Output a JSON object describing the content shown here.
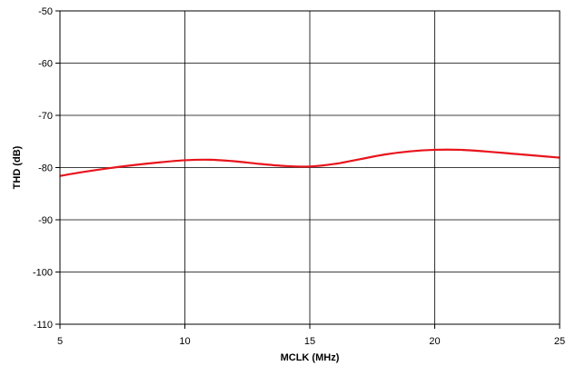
{
  "chart_data": {
    "type": "line",
    "title": "",
    "xlabel": "MCLK (MHz)",
    "ylabel": "THD (dB)",
    "xlim": [
      5,
      25
    ],
    "ylim": [
      -110,
      -50
    ],
    "xticks": [
      "5",
      "10",
      "15",
      "20",
      "25"
    ],
    "yticks": [
      "-50",
      "-60",
      "-70",
      "-80",
      "-90",
      "-100",
      "-110"
    ],
    "grid": true,
    "legend": "none",
    "series": [
      {
        "color": "#e8141c",
        "x": [
          5,
          6,
          7,
          8,
          9,
          10,
          11,
          12,
          13,
          14,
          15,
          16,
          17,
          18,
          19,
          20,
          21,
          22,
          23,
          24,
          25
        ],
        "y": [
          -81.6,
          -80.8,
          -80.1,
          -79.5,
          -79.0,
          -78.6,
          -78.5,
          -78.8,
          -79.3,
          -79.7,
          -79.8,
          -79.3,
          -78.4,
          -77.5,
          -76.9,
          -76.6,
          -76.6,
          -76.9,
          -77.3,
          -77.7,
          -78.1
        ]
      }
    ]
  }
}
